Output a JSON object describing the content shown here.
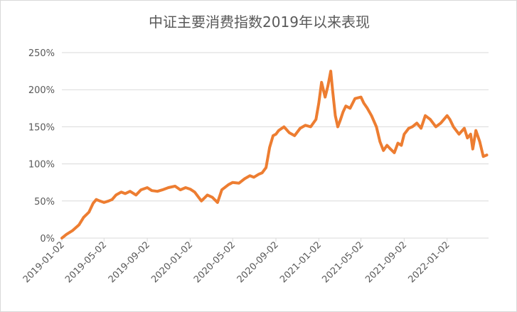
{
  "chart_data": {
    "type": "line",
    "title": "中证主要消费指数2019年以来表现",
    "xlabel": "",
    "ylabel": "",
    "ylim": [
      0,
      250
    ],
    "yticks": [
      0,
      50,
      100,
      150,
      200,
      250
    ],
    "ytick_labels": [
      "0%",
      "50%",
      "100%",
      "150%",
      "200%",
      "250%"
    ],
    "xlim": [
      "2019-01-02",
      "2022-04-30"
    ],
    "xtick_labels": [
      "2019-01-02",
      "2019-05-02",
      "2019-09-02",
      "2020-01-02",
      "2020-05-02",
      "2020-09-02",
      "2021-01-02",
      "2021-05-02",
      "2021-09-02",
      "2022-01-02"
    ],
    "grid": true,
    "legend": "none",
    "colors": {
      "line": "#ed7d31"
    },
    "series": [
      {
        "x": [
          "2019-01-02",
          "2019-01-15",
          "2019-02-01",
          "2019-02-20",
          "2019-03-05",
          "2019-03-20",
          "2019-04-01",
          "2019-04-10",
          "2019-04-20",
          "2019-05-02",
          "2019-05-15",
          "2019-05-25",
          "2019-06-05",
          "2019-06-20",
          "2019-07-01",
          "2019-07-15",
          "2019-08-01",
          "2019-08-15",
          "2019-09-02",
          "2019-09-15",
          "2019-10-01",
          "2019-10-15",
          "2019-11-01",
          "2019-11-20",
          "2019-12-05",
          "2019-12-20",
          "2020-01-02",
          "2020-01-15",
          "2020-02-03",
          "2020-02-20",
          "2020-03-05",
          "2020-03-20",
          "2020-04-01",
          "2020-04-20",
          "2020-05-02",
          "2020-05-20",
          "2020-06-05",
          "2020-06-20",
          "2020-07-01",
          "2020-07-15",
          "2020-07-25",
          "2020-08-05",
          "2020-08-15",
          "2020-08-25",
          "2020-09-02",
          "2020-09-10",
          "2020-09-25",
          "2020-10-10",
          "2020-10-25",
          "2020-11-10",
          "2020-11-25",
          "2020-12-10",
          "2020-12-25",
          "2021-01-02",
          "2021-01-10",
          "2021-01-20",
          "2021-01-28",
          "2021-02-05",
          "2021-02-10",
          "2021-02-18",
          "2021-02-25",
          "2021-03-05",
          "2021-03-12",
          "2021-03-20",
          "2021-04-01",
          "2021-04-15",
          "2021-05-02",
          "2021-05-10",
          "2021-05-20",
          "2021-06-01",
          "2021-06-15",
          "2021-06-25",
          "2021-07-05",
          "2021-07-15",
          "2021-07-25",
          "2021-08-05",
          "2021-08-15",
          "2021-08-25",
          "2021-09-02",
          "2021-09-15",
          "2021-09-25",
          "2021-10-08",
          "2021-10-20",
          "2021-11-01",
          "2021-11-15",
          "2021-12-01",
          "2021-12-15",
          "2022-01-02",
          "2022-01-10",
          "2022-01-20",
          "2022-02-05",
          "2022-02-20",
          "2022-03-01",
          "2022-03-10",
          "2022-03-16",
          "2022-03-25",
          "2022-04-05",
          "2022-04-15",
          "2022-04-25"
        ],
        "values": [
          0,
          5,
          10,
          18,
          28,
          35,
          47,
          52,
          50,
          48,
          50,
          52,
          58,
          62,
          60,
          63,
          58,
          65,
          68,
          64,
          63,
          65,
          68,
          70,
          65,
          68,
          66,
          62,
          50,
          58,
          55,
          48,
          65,
          72,
          75,
          74,
          80,
          84,
          82,
          86,
          88,
          95,
          122,
          138,
          140,
          145,
          150,
          142,
          138,
          148,
          152,
          150,
          160,
          182,
          210,
          190,
          205,
          225,
          200,
          165,
          150,
          160,
          170,
          178,
          175,
          188,
          190,
          182,
          175,
          165,
          150,
          130,
          118,
          125,
          120,
          115,
          128,
          125,
          140,
          148,
          150,
          155,
          148,
          165,
          160,
          150,
          155,
          165,
          160,
          150,
          140,
          148,
          135,
          140,
          120,
          145,
          130,
          110,
          112
        ]
      }
    ]
  }
}
